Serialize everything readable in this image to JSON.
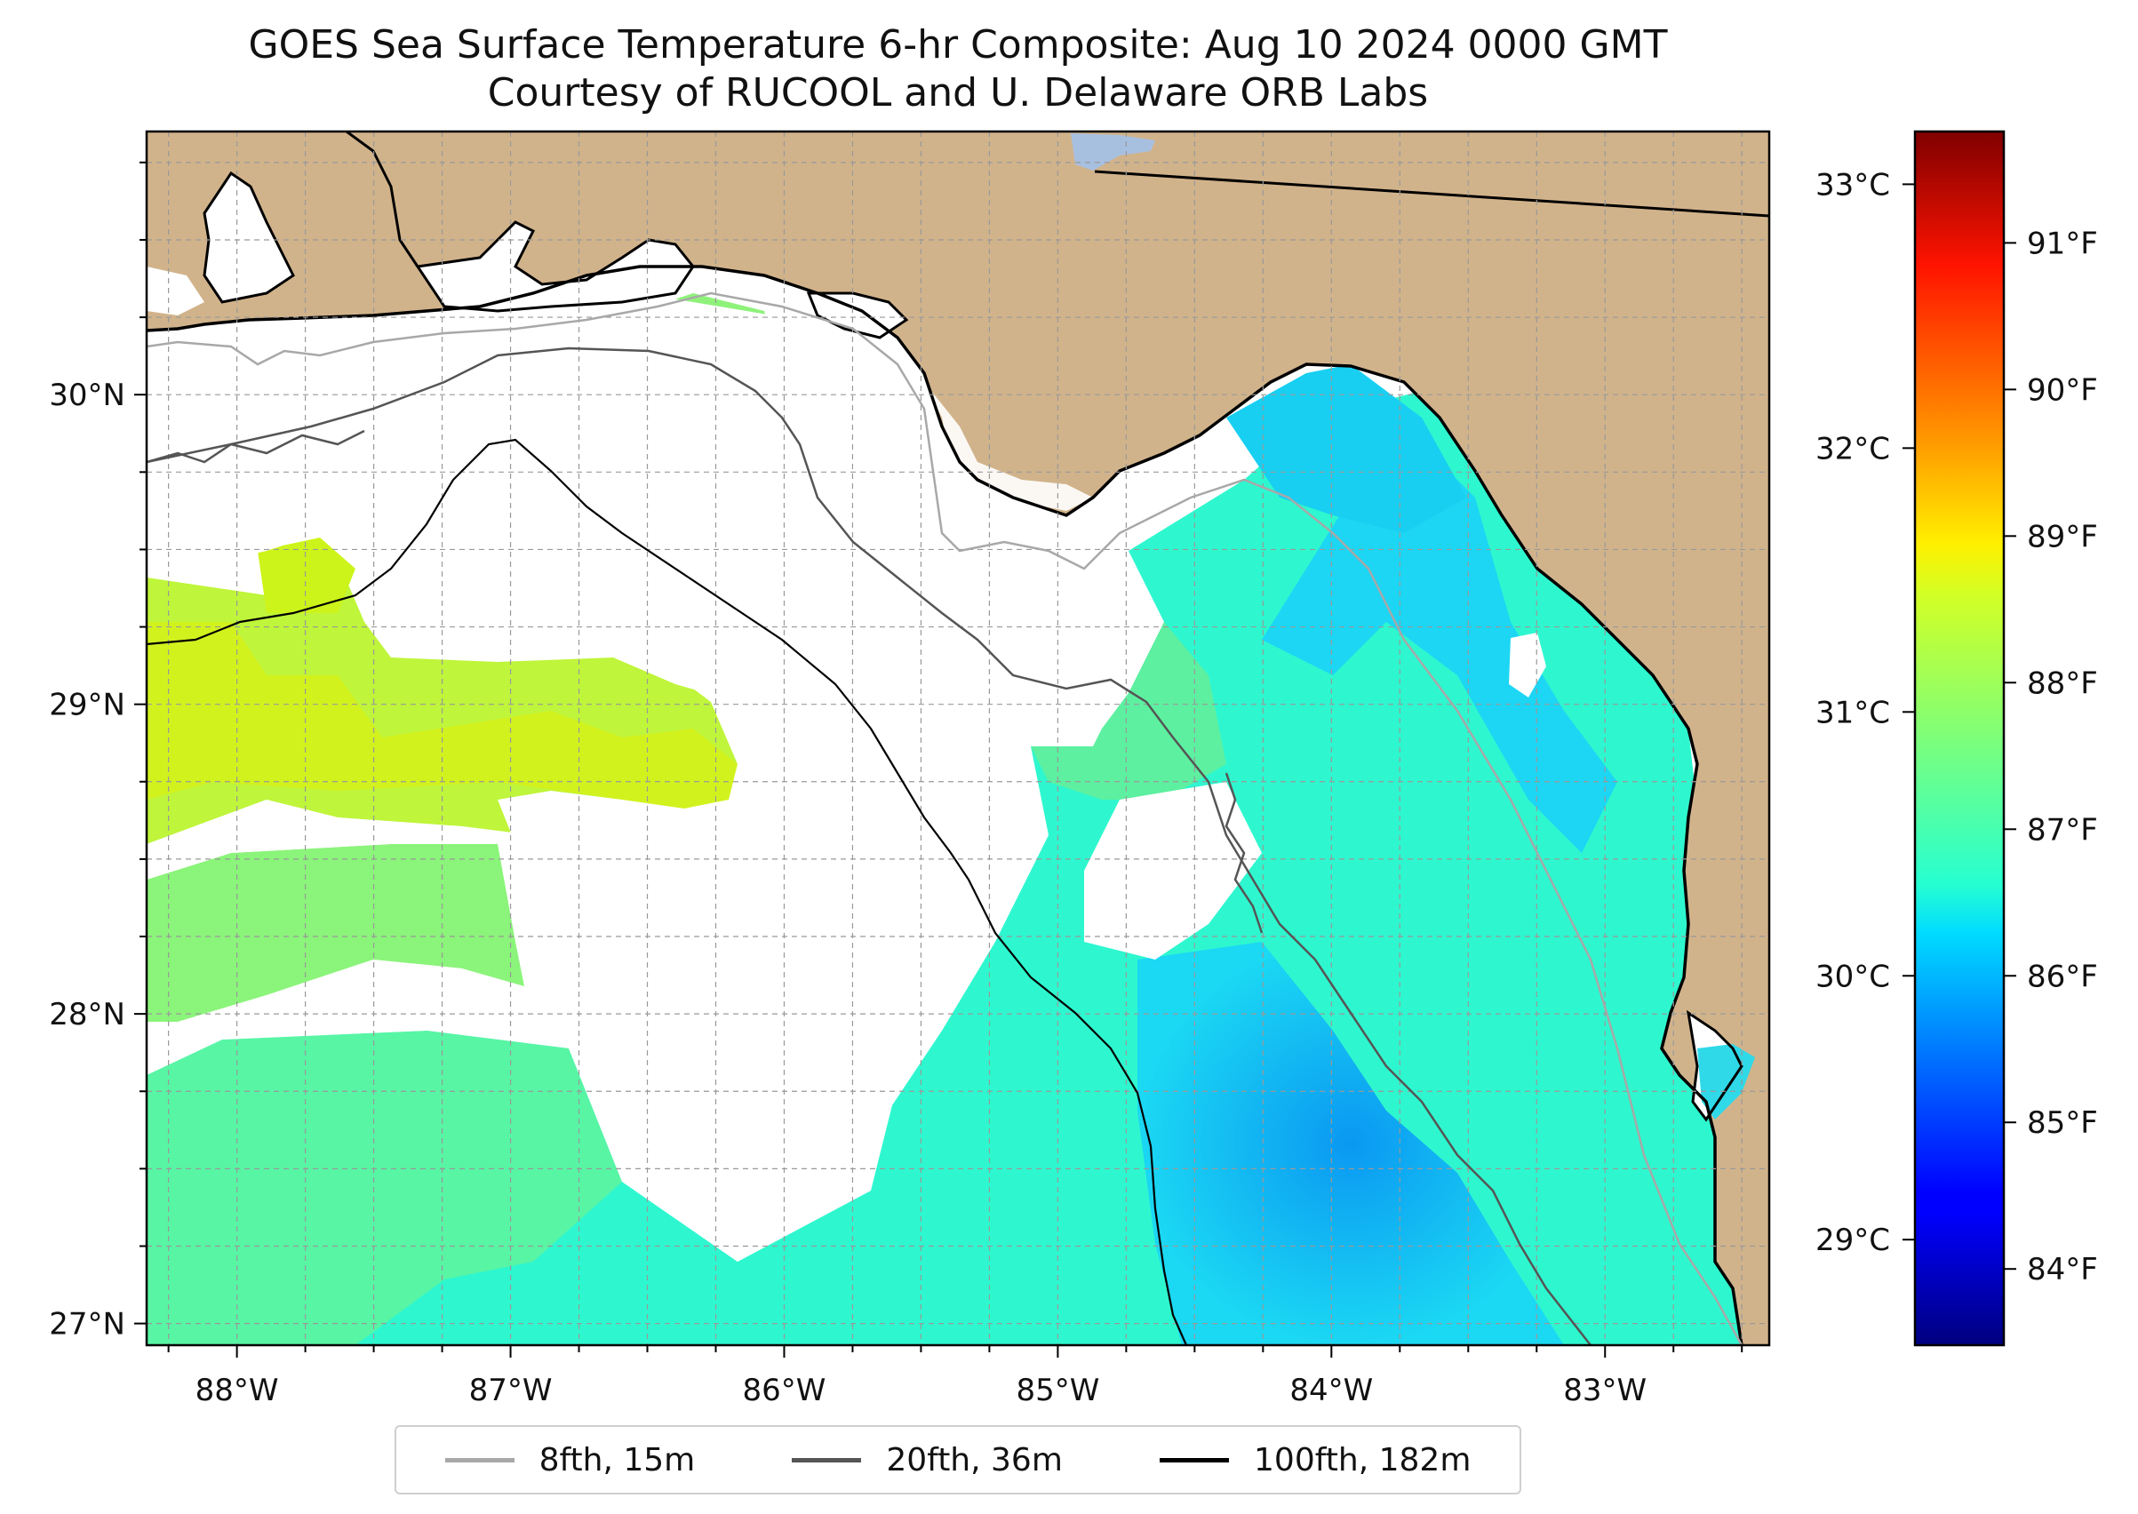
{
  "title": "GOES Sea Surface Temperature 6-hr Composite: Aug 10 2024 0000 GMT",
  "subtitle": "Courtesy of RUCOOL and U. Delaware ORB Labs",
  "map": {
    "lon_range": [
      -88.33,
      -82.4
    ],
    "lat_range": [
      26.93,
      30.85
    ],
    "grid": true,
    "land_color": "#d1b38b",
    "lake_color": "#a8c0e0",
    "lon_labels": [
      "88°W",
      "87°W",
      "86°W",
      "85°W",
      "84°W",
      "83°W"
    ],
    "lat_labels": [
      "27°N",
      "28°N",
      "29°N",
      "30°N"
    ]
  },
  "colorbar": {
    "celsius_labels": [
      "29°C",
      "30°C",
      "31°C",
      "32°C",
      "33°C"
    ],
    "fahrenheit_labels": [
      "84°F",
      "85°F",
      "86°F",
      "87°F",
      "88°F",
      "89°F",
      "90°F",
      "91°F"
    ],
    "range_c": [
      28.6,
      33.2
    ],
    "colormap": "jet"
  },
  "legend": {
    "placement": "bottom-center",
    "items": [
      {
        "label": "8fth, 15m",
        "color": "#a8a8a8"
      },
      {
        "label": "20fth, 36m",
        "color": "#555555"
      },
      {
        "label": "100fth, 182m",
        "color": "#000000"
      }
    ]
  }
}
